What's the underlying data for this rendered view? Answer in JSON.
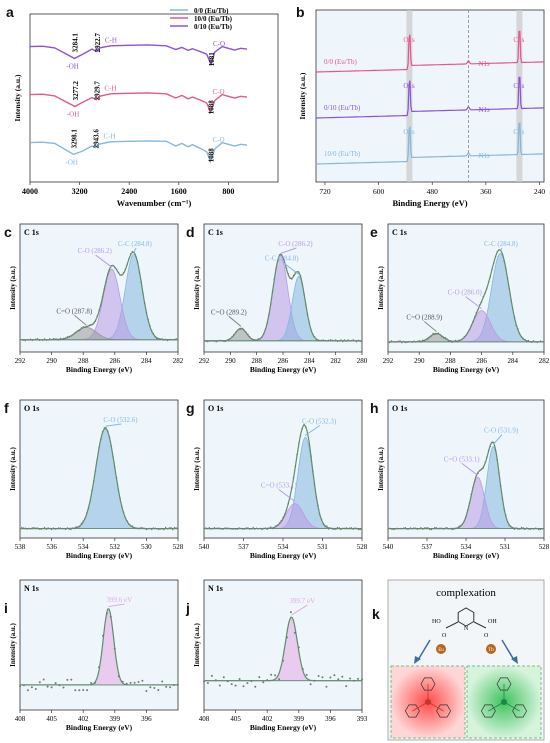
{
  "colors": {
    "black": "#3a3a3a",
    "pink": "#e8558f",
    "purple": "#8e52d6",
    "blue": "#86b7df",
    "fitgreen": "#5d8f6a",
    "panelbg": "#eef6fb",
    "ptgray": "#777777"
  },
  "panel_labels": [
    "a",
    "b",
    "c",
    "d",
    "e",
    "f",
    "g",
    "h",
    "i",
    "j",
    "k"
  ],
  "chart_data": [
    {
      "id": "a",
      "type": "line",
      "xlabel": "Wavenumber (cm⁻¹)",
      "ylabel": "Intensity (a.u.)",
      "xlim": [
        4000,
        0
      ],
      "xticks": [
        4000,
        3200,
        2400,
        1600,
        800
      ],
      "legend_position": "top-right",
      "series": [
        {
          "name": "0/0 (Eu/Tb)",
          "color": "#86b7df",
          "offset": 0.0,
          "x": [
            4000,
            3800,
            3600,
            3450,
            3298,
            3150,
            3000,
            2943,
            2900,
            2700,
            2400,
            2100,
            1800,
            1650,
            1550,
            1450,
            1380,
            1250,
            1150,
            1088,
            1020,
            900,
            800,
            700,
            600,
            500
          ],
          "y": [
            0.7,
            0.71,
            0.68,
            0.55,
            0.42,
            0.5,
            0.62,
            0.58,
            0.66,
            0.72,
            0.73,
            0.74,
            0.73,
            0.62,
            0.68,
            0.6,
            0.65,
            0.56,
            0.48,
            0.25,
            0.55,
            0.7,
            0.66,
            0.62,
            0.66,
            0.64
          ]
        },
        {
          "name": "10/0 (Eu/Tb)",
          "color": "#e8558f",
          "offset": 1.0,
          "x": [
            4000,
            3800,
            3600,
            3450,
            3277,
            3150,
            3000,
            2929,
            2880,
            2700,
            2400,
            2100,
            1800,
            1650,
            1550,
            1450,
            1380,
            1250,
            1150,
            1088,
            1020,
            900,
            800,
            700,
            600,
            500
          ],
          "y": [
            0.7,
            0.71,
            0.67,
            0.55,
            0.42,
            0.52,
            0.63,
            0.58,
            0.66,
            0.72,
            0.73,
            0.74,
            0.72,
            0.62,
            0.68,
            0.6,
            0.64,
            0.57,
            0.5,
            0.28,
            0.56,
            0.7,
            0.66,
            0.62,
            0.66,
            0.64
          ]
        },
        {
          "name": "0/10 (Eu/Tb)",
          "color": "#8e52d6",
          "offset": 2.0,
          "x": [
            4000,
            3800,
            3600,
            3450,
            3284,
            3150,
            3000,
            2922,
            2880,
            2700,
            2400,
            2100,
            1800,
            1650,
            1550,
            1450,
            1380,
            1250,
            1150,
            1081,
            1020,
            900,
            800,
            700,
            600,
            500
          ],
          "y": [
            0.7,
            0.71,
            0.67,
            0.55,
            0.42,
            0.52,
            0.64,
            0.58,
            0.67,
            0.72,
            0.73,
            0.74,
            0.72,
            0.63,
            0.68,
            0.61,
            0.65,
            0.58,
            0.52,
            0.28,
            0.57,
            0.7,
            0.66,
            0.62,
            0.66,
            0.64
          ]
        }
      ],
      "annotations": {
        "purple": {
          "oh": "-OH",
          "oh_val": "3284.1",
          "ch": "C-H",
          "ch_val": "2922.7",
          "co": "C-O",
          "co_val": "1081"
        },
        "pink": {
          "oh": "-OH",
          "oh_val": "3277.2",
          "ch": "C-H",
          "ch_val": "2929.7",
          "co": "C-O",
          "co_val": "1088"
        },
        "blue": {
          "oh": "-OH",
          "oh_val": "3298.1",
          "ch": "C-H",
          "ch_val": "2943.6",
          "co": "C-O",
          "co_val": "1088"
        }
      }
    },
    {
      "id": "b",
      "type": "line",
      "xlabel": "Binding Energy (eV)",
      "ylabel": "Intensity (a.u.)",
      "xlim": [
        740,
        230
      ],
      "xticks": [
        720,
        600,
        480,
        360,
        240
      ],
      "series": [
        {
          "name": "0/0 (Eu/Tb)",
          "color": "#e8558f",
          "offset": 2.0
        },
        {
          "name": "0/10 (Eu/Tb)",
          "color": "#8e52d6",
          "offset": 1.0
        },
        {
          "name": "10/0 (Eu/Tb)",
          "color": "#86b7df",
          "offset": 0.0
        }
      ],
      "peaks": {
        "O1s": 531,
        "N1s": 399,
        "C1s": 285
      },
      "peak_labels": {
        "o1s": "O1s",
        "n1s": "N1s",
        "c1s": "C1s"
      }
    },
    {
      "id": "c",
      "type": "area",
      "title": "C 1s",
      "xlabel": "Binding Energy (eV)",
      "ylabel": "Intensity (a.u.)",
      "xlim": [
        292,
        282
      ],
      "xticks": [
        292,
        290,
        288,
        286,
        284,
        282
      ],
      "peaks": [
        {
          "label": "C-C (284.8)",
          "center": 284.8,
          "height": 0.82,
          "width": 0.75,
          "color": "#86b7df"
        },
        {
          "label": "C-O (286.2)",
          "center": 286.2,
          "height": 0.68,
          "width": 0.75,
          "color": "#b99ae6"
        },
        {
          "label": "C=O (287.8)",
          "center": 287.8,
          "height": 0.12,
          "width": 0.9,
          "color": "#999999"
        }
      ],
      "baseline": 0.06
    },
    {
      "id": "d",
      "type": "area",
      "title": "C 1s",
      "xlabel": "Binding Energy (eV)",
      "ylabel": "Intensity (a.u.)",
      "xlim": [
        292,
        280
      ],
      "xticks": [
        292,
        290,
        288,
        286,
        284,
        282,
        280
      ],
      "peaks": [
        {
          "label": "C-O (286.2)",
          "center": 286.2,
          "height": 0.82,
          "width": 0.8,
          "color": "#b99ae6"
        },
        {
          "label": "C-C (284.8)",
          "center": 284.8,
          "height": 0.62,
          "width": 0.7,
          "color": "#86b7df"
        },
        {
          "label": "C=O (289.2)",
          "center": 289.2,
          "height": 0.12,
          "width": 0.6,
          "color": "#999999"
        }
      ],
      "baseline": 0.05
    },
    {
      "id": "e",
      "type": "area",
      "title": "C 1s",
      "xlabel": "Binding Energy (eV)",
      "ylabel": "Intensity (a.u.)",
      "xlim": [
        292,
        282
      ],
      "xticks": [
        292,
        290,
        288,
        286,
        284,
        282
      ],
      "peaks": [
        {
          "label": "C-C (284.8)",
          "center": 284.8,
          "height": 0.85,
          "width": 0.8,
          "color": "#86b7df"
        },
        {
          "label": "C-O (286.0)",
          "center": 286.0,
          "height": 0.3,
          "width": 0.8,
          "color": "#b99ae6"
        },
        {
          "label": "C=O (288.9)",
          "center": 288.9,
          "height": 0.08,
          "width": 0.6,
          "color": "#999999"
        }
      ],
      "baseline": 0.04
    },
    {
      "id": "f",
      "type": "area",
      "title": "O 1s",
      "xlabel": "Binding Energy (eV)",
      "ylabel": "Intensity (a.u.)",
      "xlim": [
        538,
        528
      ],
      "xticks": [
        538,
        536,
        534,
        532,
        530,
        528
      ],
      "peaks": [
        {
          "label": "C-O (532.6)",
          "center": 532.6,
          "height": 0.88,
          "width": 0.85,
          "color": "#86b7df"
        }
      ],
      "baseline": 0.03
    },
    {
      "id": "g",
      "type": "area",
      "title": "O 1s",
      "xlabel": "Binding Energy (eV)",
      "ylabel": "Intensity (a.u.)",
      "xlim": [
        540,
        528
      ],
      "xticks": [
        540,
        537,
        534,
        531,
        528
      ],
      "peaks": [
        {
          "label": "C-O (532.3)",
          "center": 532.3,
          "height": 0.8,
          "width": 0.8,
          "color": "#86b7df"
        },
        {
          "label": "C=O (533.1)",
          "center": 533.1,
          "height": 0.22,
          "width": 0.9,
          "color": "#b99ae6"
        }
      ],
      "baseline": 0.03
    },
    {
      "id": "h",
      "type": "area",
      "title": "O 1s",
      "xlabel": "Binding Energy (eV)",
      "ylabel": "Intensity (a.u.)",
      "xlim": [
        540,
        528
      ],
      "xticks": [
        540,
        537,
        534,
        531,
        528
      ],
      "peaks": [
        {
          "label": "C-O (531.9)",
          "center": 531.9,
          "height": 0.72,
          "width": 0.7,
          "color": "#86b7df"
        },
        {
          "label": "C=O (533.1)",
          "center": 533.1,
          "height": 0.45,
          "width": 0.75,
          "color": "#b99ae6"
        }
      ],
      "baseline": 0.03
    },
    {
      "id": "i",
      "type": "area",
      "title": "N 1s",
      "xlabel": "Binding Energy (eV)",
      "ylabel": "Intensity (a.u.)",
      "xlim": [
        408,
        393
      ],
      "xticks": [
        408,
        405,
        402,
        399,
        396
      ],
      "peaks": [
        {
          "label": "399.6 eV",
          "center": 399.6,
          "height": 0.72,
          "width": 0.7,
          "color": "#e6a8e6"
        }
      ],
      "baseline": 0.18
    },
    {
      "id": "j",
      "type": "area",
      "title": "N 1s",
      "xlabel": "Binding Energy (eV)",
      "ylabel": "Intensity (a.u.)",
      "xlim": [
        408,
        393
      ],
      "xticks": [
        408,
        405,
        402,
        399,
        396,
        393
      ],
      "peaks": [
        {
          "label": "399.7 eV",
          "center": 399.7,
          "height": 0.6,
          "width": 0.8,
          "color": "#e6a8e6"
        }
      ],
      "baseline": 0.22
    }
  ],
  "scheme_k": {
    "title": "complexation",
    "eu": "Eu",
    "tb": "Tb",
    "ligand_labels": [
      "HO",
      "O",
      "N",
      "O",
      "OH"
    ]
  }
}
